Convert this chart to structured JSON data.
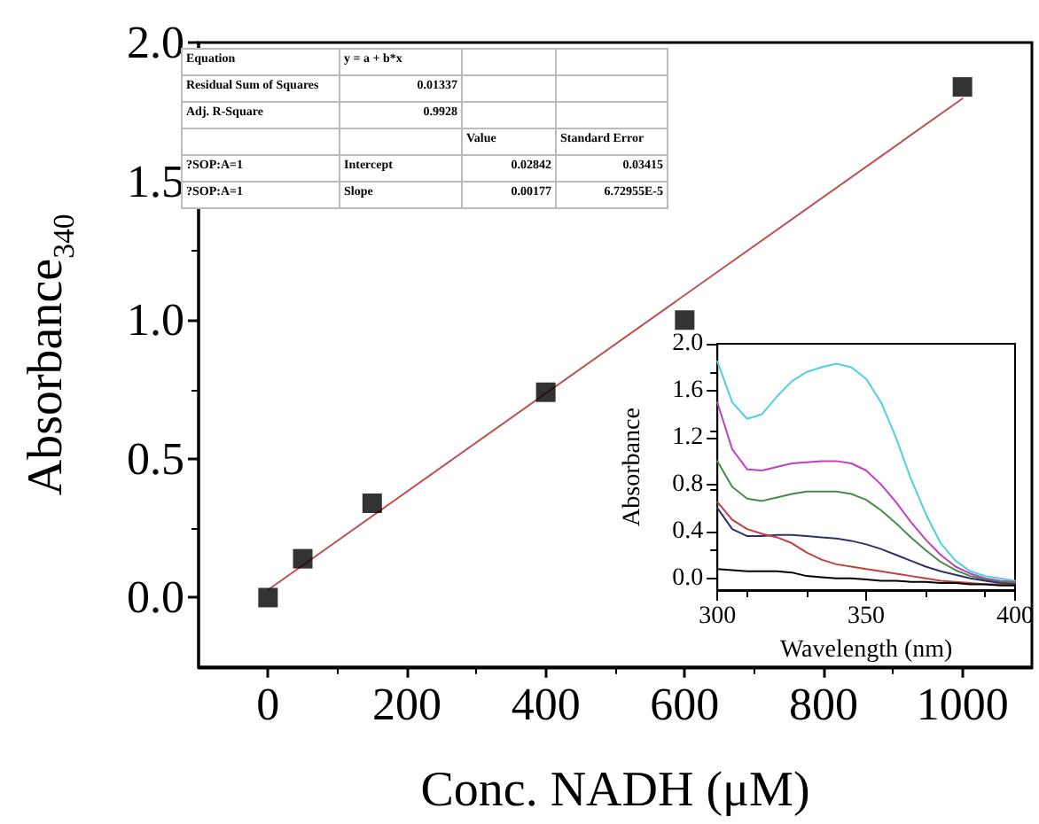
{
  "chart_data": [
    {
      "type": "scatter",
      "xlabel": "Conc. NADH (μM)",
      "ylabel": "Absorbance$_{340}$",
      "xlim": [
        -100,
        1100
      ],
      "xticks": [
        0,
        200,
        400,
        600,
        800,
        1000
      ],
      "ylim": [
        -0.25,
        2.0
      ],
      "yticks": [
        {
          "value": 0,
          "label": "0.0"
        },
        0.5,
        {
          "value": 1,
          "label": "1.0"
        },
        1.5,
        {
          "value": 2,
          "label": "2.0"
        }
      ],
      "grid": false,
      "marker": "square",
      "series": [
        {
          "color": "#000000",
          "x": [
            0,
            50,
            150,
            400,
            600,
            1000
          ],
          "values": [
            0.0,
            0.14,
            0.34,
            0.74,
            1.0,
            1.84
          ]
        },
        {
          "type": "line",
          "color": "#c05050",
          "marker": "none",
          "x": [
            0,
            1000
          ],
          "values": [
            0.028,
            1.798
          ]
        }
      ],
      "annotations": [
        "Equation",
        "y = a + b*x",
        "Residual Sum of Squares",
        "0.01337",
        "Adj. R-Square",
        "0.9928",
        "Value",
        "Standard Error",
        "?SOP:A=1",
        "Intercept",
        "0.02842",
        "0.03415",
        "?SOP:A=1",
        "Slope",
        "0.00177",
        "6.72955E-5"
      ]
    },
    {
      "type": "line",
      "xlabel": "Wavelength (nm)",
      "ylabel": "Absorbance",
      "xlim": [
        300,
        400
      ],
      "xticks": [
        300,
        350,
        400
      ],
      "ylim": [
        -0.1,
        2.0
      ],
      "yticks": [
        {
          "value": 0,
          "label": "0.0"
        },
        0.4,
        0.8,
        1.2,
        1.6,
        {
          "value": 2,
          "label": "2.0"
        }
      ],
      "grid": false,
      "marker": "none",
      "x": [
        300,
        305,
        310,
        315,
        320,
        325,
        330,
        335,
        340,
        345,
        350,
        355,
        360,
        365,
        370,
        375,
        380,
        385,
        390,
        395,
        400
      ],
      "series": [
        {
          "color": "#4fd0e0",
          "values": [
            1.85,
            1.5,
            1.36,
            1.4,
            1.55,
            1.68,
            1.76,
            1.8,
            1.83,
            1.8,
            1.7,
            1.5,
            1.2,
            0.85,
            0.55,
            0.3,
            0.15,
            0.06,
            0.02,
            0.0,
            -0.02
          ]
        },
        {
          "color": "#c040c0",
          "values": [
            1.5,
            1.1,
            0.93,
            0.92,
            0.95,
            0.98,
            0.99,
            1.0,
            1.0,
            0.98,
            0.92,
            0.8,
            0.65,
            0.48,
            0.33,
            0.2,
            0.1,
            0.04,
            0.0,
            -0.02,
            -0.03
          ]
        },
        {
          "color": "#4a8a4a",
          "values": [
            1.0,
            0.78,
            0.68,
            0.66,
            0.69,
            0.72,
            0.74,
            0.74,
            0.74,
            0.72,
            0.67,
            0.58,
            0.47,
            0.35,
            0.24,
            0.14,
            0.07,
            0.02,
            -0.01,
            -0.03,
            -0.04
          ]
        },
        {
          "color": "#303070",
          "values": [
            0.6,
            0.42,
            0.36,
            0.36,
            0.37,
            0.37,
            0.36,
            0.35,
            0.34,
            0.32,
            0.29,
            0.25,
            0.2,
            0.15,
            0.1,
            0.06,
            0.03,
            0.0,
            -0.02,
            -0.04,
            -0.05
          ]
        },
        {
          "color": "#c04040",
          "values": [
            0.65,
            0.5,
            0.42,
            0.38,
            0.35,
            0.3,
            0.22,
            0.16,
            0.12,
            0.1,
            0.08,
            0.06,
            0.04,
            0.02,
            0.0,
            -0.02,
            -0.03,
            -0.04,
            -0.05,
            -0.05,
            -0.06
          ]
        },
        {
          "color": "#000000",
          "values": [
            0.08,
            0.07,
            0.06,
            0.06,
            0.06,
            0.05,
            0.02,
            0.01,
            0.0,
            0.0,
            -0.01,
            -0.02,
            -0.02,
            -0.03,
            -0.03,
            -0.04,
            -0.04,
            -0.05,
            -0.05,
            -0.06,
            -0.06
          ]
        }
      ]
    }
  ]
}
